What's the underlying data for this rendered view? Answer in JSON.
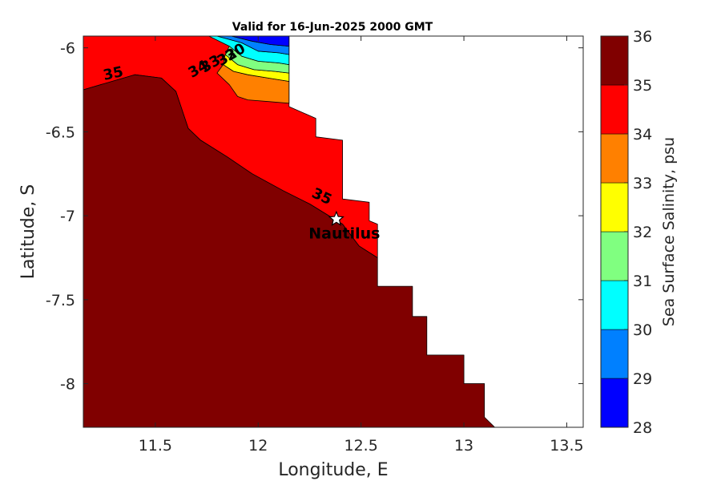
{
  "chart_data": {
    "type": "heatmap",
    "title": "Valid for 16-Jun-2025 2000 GMT",
    "xlabel": "Longitude, E",
    "ylabel": "Latitude, S",
    "xlim": [
      11.15,
      13.58
    ],
    "ylim": [
      -8.26,
      -5.93
    ],
    "xticks": [
      11.5,
      12,
      12.5,
      13,
      13.5
    ],
    "xtick_labels": [
      "11.5",
      "12",
      "12.5",
      "13",
      "13.5"
    ],
    "yticks": [
      -6,
      -6.5,
      -7,
      -7.5,
      -8
    ],
    "ytick_labels": [
      "-6",
      "-6.5",
      "-7",
      "-7.5",
      "-8"
    ],
    "colorbar": {
      "label": "Sea Surface Salinity, psu",
      "range": [
        28,
        36
      ],
      "tick_labels": [
        "28",
        "29",
        "30",
        "31",
        "32",
        "33",
        "34",
        "35",
        "36"
      ],
      "bands": [
        {
          "from": 28,
          "to": 29,
          "color": "#0000ff"
        },
        {
          "from": 29,
          "to": 30,
          "color": "#0080ff"
        },
        {
          "from": 30,
          "to": 31,
          "color": "#00ffff"
        },
        {
          "from": 31,
          "to": 32,
          "color": "#80ff80"
        },
        {
          "from": 32,
          "to": 33,
          "color": "#ffff00"
        },
        {
          "from": 33,
          "to": 34,
          "color": "#ff8000"
        },
        {
          "from": 34,
          "to": 35,
          "color": "#ff0000"
        },
        {
          "from": 35,
          "to": 36,
          "color": "#800000"
        }
      ]
    },
    "regions": [
      {
        "name": "salinity-34-35",
        "level": 34,
        "color": "#ff0000",
        "polygon": [
          [
            11.15,
            -5.93
          ],
          [
            12.15,
            -5.93
          ],
          [
            12.15,
            -6.35
          ],
          [
            12.28,
            -6.42
          ],
          [
            12.28,
            -6.53
          ],
          [
            12.41,
            -6.55
          ],
          [
            12.41,
            -6.9
          ],
          [
            12.54,
            -6.92
          ],
          [
            12.54,
            -7.03
          ],
          [
            12.58,
            -7.05
          ],
          [
            12.58,
            -7.25
          ],
          [
            12.49,
            -7.18
          ],
          [
            12.41,
            -7.05
          ],
          [
            12.25,
            -6.93
          ],
          [
            12.12,
            -6.85
          ],
          [
            11.97,
            -6.75
          ],
          [
            11.85,
            -6.65
          ],
          [
            11.72,
            -6.55
          ],
          [
            11.66,
            -6.48
          ],
          [
            11.6,
            -6.26
          ],
          [
            11.53,
            -6.18
          ],
          [
            11.4,
            -6.16
          ],
          [
            11.15,
            -6.25
          ]
        ]
      },
      {
        "name": "salinity-33-34",
        "level": 33,
        "color": "#ff8000",
        "polygon": [
          [
            11.83,
            -6.1
          ],
          [
            11.88,
            -6.14
          ],
          [
            11.95,
            -6.16
          ],
          [
            12.05,
            -6.18
          ],
          [
            12.15,
            -6.2
          ],
          [
            12.15,
            -6.33
          ],
          [
            12.05,
            -6.32
          ],
          [
            11.95,
            -6.31
          ],
          [
            11.9,
            -6.29
          ],
          [
            11.86,
            -6.22
          ],
          [
            11.8,
            -6.15
          ]
        ]
      },
      {
        "name": "salinity-32-33",
        "level": 32,
        "color": "#ffff00",
        "polygon": [
          [
            11.84,
            -6.04
          ],
          [
            11.9,
            -6.1
          ],
          [
            11.98,
            -6.13
          ],
          [
            12.08,
            -6.14
          ],
          [
            12.15,
            -6.15
          ],
          [
            12.15,
            -6.2
          ],
          [
            12.05,
            -6.18
          ],
          [
            11.95,
            -6.16
          ],
          [
            11.88,
            -6.14
          ],
          [
            11.83,
            -6.1
          ]
        ]
      },
      {
        "name": "salinity-31-32",
        "level": 31,
        "color": "#80ff80",
        "polygon": [
          [
            11.86,
            -5.99
          ],
          [
            11.92,
            -6.05
          ],
          [
            12.0,
            -6.08
          ],
          [
            12.1,
            -6.09
          ],
          [
            12.15,
            -6.1
          ],
          [
            12.15,
            -6.15
          ],
          [
            12.08,
            -6.14
          ],
          [
            11.98,
            -6.13
          ],
          [
            11.9,
            -6.1
          ],
          [
            11.84,
            -6.04
          ]
        ]
      },
      {
        "name": "salinity-30-31",
        "level": 30,
        "color": "#00ffff",
        "polygon": [
          [
            11.8,
            -5.93
          ],
          [
            11.92,
            -5.97
          ],
          [
            12.0,
            -6.02
          ],
          [
            12.1,
            -6.03
          ],
          [
            12.15,
            -6.04
          ],
          [
            12.15,
            -6.1
          ],
          [
            12.1,
            -6.09
          ],
          [
            12.0,
            -6.08
          ],
          [
            11.92,
            -6.05
          ],
          [
            11.86,
            -5.99
          ],
          [
            11.76,
            -5.93
          ]
        ]
      },
      {
        "name": "salinity-29-30",
        "level": 29,
        "color": "#0080ff",
        "polygon": [
          [
            11.87,
            -5.93
          ],
          [
            11.97,
            -5.96
          ],
          [
            12.06,
            -5.98
          ],
          [
            12.15,
            -5.99
          ],
          [
            12.15,
            -6.04
          ],
          [
            12.1,
            -6.03
          ],
          [
            12.0,
            -6.02
          ],
          [
            11.92,
            -5.97
          ],
          [
            11.8,
            -5.93
          ]
        ]
      },
      {
        "name": "salinity-28-29",
        "level": 28,
        "color": "#0000ff",
        "polygon": [
          [
            11.95,
            -5.93
          ],
          [
            12.15,
            -5.93
          ],
          [
            12.15,
            -5.99
          ],
          [
            12.06,
            -5.98
          ],
          [
            11.97,
            -5.96
          ],
          [
            11.87,
            -5.93
          ]
        ]
      },
      {
        "name": "salinity-35-36",
        "level": 35,
        "color": "#800000",
        "polygon": [
          [
            11.15,
            -6.25
          ],
          [
            11.4,
            -6.16
          ],
          [
            11.53,
            -6.18
          ],
          [
            11.6,
            -6.26
          ],
          [
            11.66,
            -6.48
          ],
          [
            11.72,
            -6.55
          ],
          [
            11.85,
            -6.65
          ],
          [
            11.97,
            -6.75
          ],
          [
            12.12,
            -6.85
          ],
          [
            12.25,
            -6.93
          ],
          [
            12.41,
            -7.05
          ],
          [
            12.49,
            -7.18
          ],
          [
            12.58,
            -7.25
          ],
          [
            12.58,
            -7.42
          ],
          [
            12.75,
            -7.42
          ],
          [
            12.75,
            -7.6
          ],
          [
            12.82,
            -7.6
          ],
          [
            12.82,
            -7.83
          ],
          [
            13.0,
            -7.83
          ],
          [
            13.0,
            -8.0
          ],
          [
            13.1,
            -8.0
          ],
          [
            13.1,
            -8.2
          ],
          [
            13.15,
            -8.26
          ],
          [
            11.15,
            -8.26
          ]
        ]
      }
    ],
    "contour_labels": [
      {
        "text": "35",
        "x": 11.3,
        "y": -6.18,
        "rotate": -12
      },
      {
        "text": "35",
        "x": 12.3,
        "y": -6.91,
        "rotate": 25
      },
      {
        "text": "30",
        "x": 11.9,
        "y": -6.05,
        "rotate": -30
      },
      {
        "text": "32",
        "x": 11.86,
        "y": -6.08,
        "rotate": -30
      },
      {
        "text": "33",
        "x": 11.78,
        "y": -6.12,
        "rotate": -30
      },
      {
        "text": "34",
        "x": 11.72,
        "y": -6.15,
        "rotate": -30
      }
    ],
    "marker": {
      "label": "Nautilus",
      "x": 12.38,
      "y": -7.02
    }
  }
}
